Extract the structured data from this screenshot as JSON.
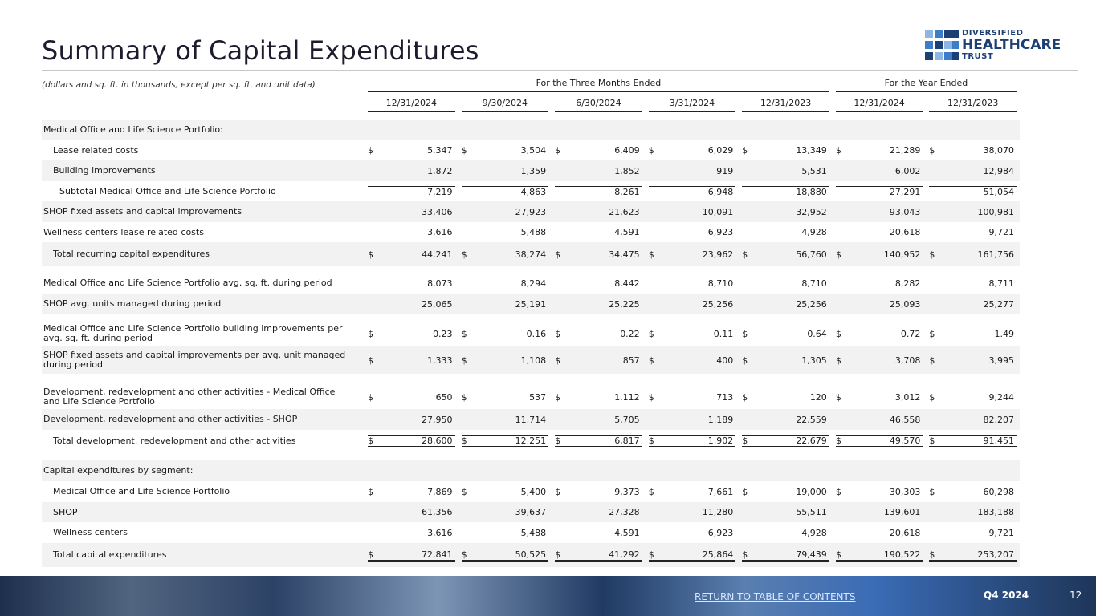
{
  "header": {
    "title": "Summary of Capital Expenditures",
    "logo": [
      "DIVERSIFIED",
      "HEALTHCARE",
      "TRUST"
    ]
  },
  "table": {
    "note": "(dollars and sq. ft. in thousands, except per sq. ft. and unit data)",
    "groups": [
      "For the Three Months Ended",
      "For the Year Ended"
    ],
    "columns": [
      "12/31/2024",
      "9/30/2024",
      "6/30/2024",
      "3/31/2024",
      "12/31/2023",
      "12/31/2024",
      "12/31/2023"
    ],
    "rows": [
      {
        "label": "Medical Office and Life Science Portfolio:"
      },
      {
        "label": "Lease related costs",
        "prefix": "$",
        "values": [
          "5,347",
          "3,504",
          "6,409",
          "6,029",
          "13,349",
          "21,289",
          "38,070"
        ]
      },
      {
        "label": "Building improvements",
        "values": [
          "1,872",
          "1,359",
          "1,852",
          "919",
          "5,531",
          "6,002",
          "12,984"
        ]
      },
      {
        "label": "Subtotal Medical Office and Life Science Portfolio",
        "values": [
          "7,219",
          "4,863",
          "8,261",
          "6,948",
          "18,880",
          "27,291",
          "51,054"
        ]
      },
      {
        "label": "SHOP fixed assets and capital improvements",
        "values": [
          "33,406",
          "27,923",
          "21,623",
          "10,091",
          "32,952",
          "93,043",
          "100,981"
        ]
      },
      {
        "label": "Wellness centers lease related costs",
        "values": [
          "3,616",
          "5,488",
          "4,591",
          "6,923",
          "4,928",
          "20,618",
          "9,721"
        ]
      },
      {
        "label": "Total recurring capital expenditures",
        "prefix": "$",
        "values": [
          "44,241",
          "38,274",
          "34,475",
          "23,962",
          "56,760",
          "140,952",
          "161,756"
        ]
      },
      {
        "label": "Medical Office and Life Science Portfolio avg. sq. ft. during period",
        "values": [
          "8,073",
          "8,294",
          "8,442",
          "8,710",
          "8,710",
          "8,282",
          "8,711"
        ]
      },
      {
        "label": "SHOP avg. units managed during period",
        "values": [
          "25,065",
          "25,191",
          "25,225",
          "25,256",
          "25,256",
          "25,093",
          "25,277"
        ]
      },
      {
        "label": "Medical Office and Life Science Portfolio building improvements per avg. sq. ft. during period",
        "prefix": "$",
        "values": [
          "0.23",
          "0.16",
          "0.22",
          "0.11",
          "0.64",
          "0.72",
          "1.49"
        ]
      },
      {
        "label": "SHOP fixed assets and capital improvements per avg. unit managed during period",
        "prefix": "$",
        "values": [
          "1,333",
          "1,108",
          "857",
          "400",
          "1,305",
          "3,708",
          "3,995"
        ]
      },
      {
        "label": "Development, redevelopment and other activities - Medical Office and Life Science Portfolio",
        "prefix": "$",
        "values": [
          "650",
          "537",
          "1,112",
          "713",
          "120",
          "3,012",
          "9,244"
        ]
      },
      {
        "label": "Development, redevelopment and other activities - SHOP",
        "values": [
          "27,950",
          "11,714",
          "5,705",
          "1,189",
          "22,559",
          "46,558",
          "82,207"
        ]
      },
      {
        "label": "Total development, redevelopment and other activities",
        "prefix": "$",
        "values": [
          "28,600",
          "12,251",
          "6,817",
          "1,902",
          "22,679",
          "49,570",
          "91,451"
        ]
      },
      {
        "label": "Capital expenditures by segment:"
      },
      {
        "label": "Medical Office and Life Science Portfolio",
        "prefix": "$",
        "values": [
          "7,869",
          "5,400",
          "9,373",
          "7,661",
          "19,000",
          "30,303",
          "60,298"
        ]
      },
      {
        "label": "SHOP",
        "values": [
          "61,356",
          "39,637",
          "27,328",
          "11,280",
          "55,511",
          "139,601",
          "183,188"
        ]
      },
      {
        "label": "Wellness centers",
        "values": [
          "3,616",
          "5,488",
          "4,591",
          "6,923",
          "4,928",
          "20,618",
          "9,721"
        ]
      },
      {
        "label": "Total capital expenditures",
        "prefix": "$",
        "values": [
          "72,841",
          "50,525",
          "41,292",
          "25,864",
          "79,439",
          "190,522",
          "253,207"
        ]
      }
    ]
  },
  "footer": {
    "link": "RETURN TO TABLE OF CONTENTS",
    "quarter": "Q4 2024",
    "page": "12"
  }
}
